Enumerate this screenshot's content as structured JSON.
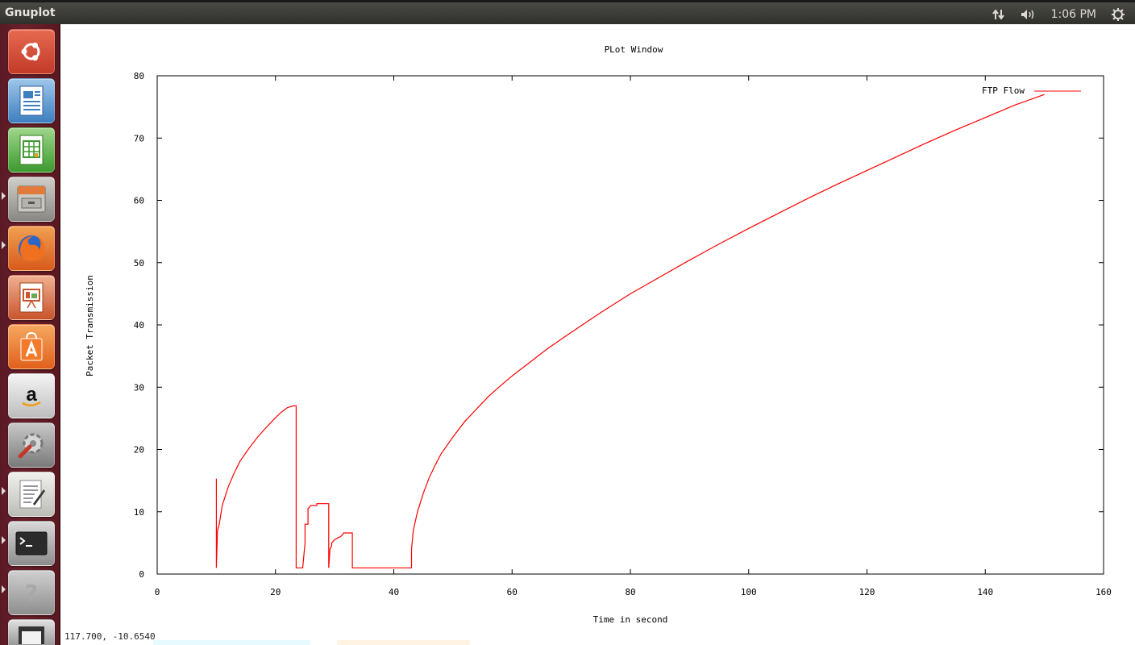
{
  "panel": {
    "app_title": "Gnuplot",
    "network_icon": "network-updown-icon",
    "sound_icon": "speaker-icon",
    "clock": "1:06 PM",
    "session_icon": "gear-power-icon"
  },
  "launcher": {
    "items": [
      {
        "name": "ubuntu-dash",
        "icon": "ubuntu-logo-icon"
      },
      {
        "name": "libreoffice-writer",
        "icon": "writer-icon"
      },
      {
        "name": "libreoffice-calc",
        "icon": "calc-icon"
      },
      {
        "name": "files",
        "icon": "file-cabinet-icon"
      },
      {
        "name": "firefox",
        "icon": "firefox-icon"
      },
      {
        "name": "libreoffice-impress",
        "icon": "impress-icon"
      },
      {
        "name": "ubuntu-software-center",
        "icon": "shopping-bag-icon"
      },
      {
        "name": "amazon",
        "icon": "amazon-icon"
      },
      {
        "name": "system-settings",
        "icon": "settings-wrench-icon"
      },
      {
        "name": "text-editor",
        "icon": "text-editor-icon"
      },
      {
        "name": "terminal",
        "icon": "terminal-icon"
      },
      {
        "name": "help",
        "icon": "help-icon"
      },
      {
        "name": "trash",
        "icon": "trash-icon"
      }
    ]
  },
  "status": {
    "mouse_coords": "117.700, -10.6540"
  },
  "colors": {
    "series": "#ff0000",
    "axes": "#000000"
  },
  "chart_data": {
    "type": "line",
    "title": "PLot Window",
    "xlabel": "Time in second",
    "ylabel": "Packet Transmission",
    "xlim": [
      0,
      160
    ],
    "ylim": [
      0,
      80
    ],
    "xticks": [
      "0",
      "20",
      "40",
      "60",
      "80",
      "100",
      "120",
      "140",
      "160"
    ],
    "yticks": [
      "0",
      "10",
      "20",
      "30",
      "40",
      "50",
      "60",
      "70",
      "80"
    ],
    "legend": "top-right",
    "series": [
      {
        "name": "FTP Flow",
        "x": [
          10,
          10,
          10.2,
          10.5,
          11,
          12,
          13,
          14,
          15,
          16,
          17,
          18,
          19,
          20,
          21,
          22,
          23,
          23.4,
          23.5,
          23.5,
          24.5,
          24.6,
          25,
          25,
          25.5,
          25.5,
          26,
          27,
          27,
          29,
          29,
          29.2,
          29.5,
          29.5,
          30,
          30.5,
          31,
          31.5,
          31.5,
          33,
          33,
          34,
          38,
          43,
          43,
          43.3,
          44,
          45,
          46,
          47,
          48,
          50,
          52,
          54,
          56,
          58,
          60,
          63,
          66,
          70,
          75,
          80,
          85,
          90,
          95,
          100,
          105,
          110,
          115,
          120,
          125,
          130,
          135,
          140,
          145,
          150
        ],
        "y": [
          15.3,
          1,
          7,
          8,
          11,
          14,
          16.2,
          18.1,
          19.5,
          20.8,
          22,
          23.1,
          24.1,
          25.1,
          26,
          26.7,
          27,
          27,
          27,
          1,
          1,
          1,
          5,
          8,
          8,
          10.5,
          11,
          11,
          11.3,
          11.3,
          1,
          4,
          4.5,
          5,
          5.5,
          5.8,
          6,
          6.5,
          6.6,
          6.6,
          1,
          1,
          1,
          1,
          4,
          7,
          10,
          13,
          15.5,
          17.5,
          19.3,
          22,
          24.5,
          26.5,
          28.5,
          30.2,
          31.8,
          34,
          36.2,
          38.8,
          42,
          45,
          47.7,
          50.4,
          53,
          55.5,
          57.9,
          60.3,
          62.6,
          64.8,
          67,
          69.2,
          71.3,
          73.3,
          75.3,
          77
        ]
      }
    ]
  }
}
